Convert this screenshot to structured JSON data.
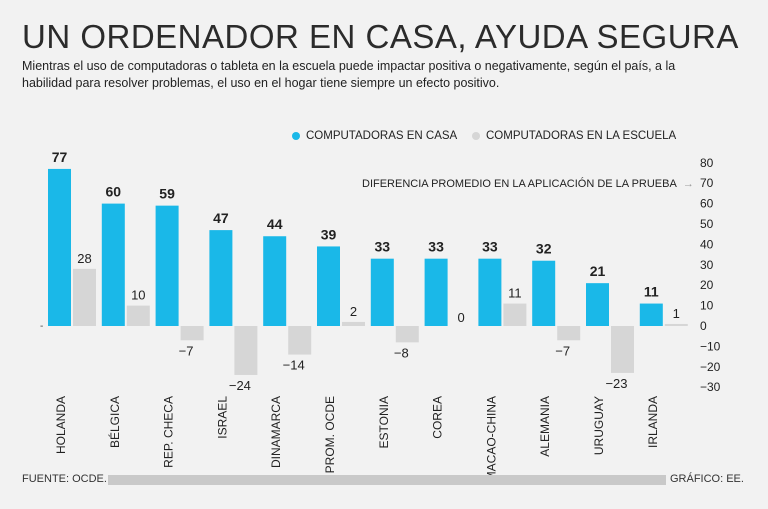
{
  "header": {
    "title": "UN ORDENADOR EN CASA, AYUDA SEGURA",
    "subtitle": "Mientras el uso de computadoras o tableta en la escuela puede impactar positiva o negativamente, según el país, a la habilidad para resolver problemas, el uso en el hogar tiene siempre un efecto positivo."
  },
  "legend": {
    "home": "COMPUTADORAS EN CASA",
    "school": "COMPUTADORAS EN LA ESCUELA"
  },
  "axis_note": {
    "text": "DIFERENCIA PROMEDIO EN LA APLICACIÓN DE LA PRUEBA",
    "arrow": "→"
  },
  "footer": {
    "source": "FUENTE: OCDE.",
    "credit": "GRÁFICO: EE."
  },
  "colors": {
    "home": "#1ab8e8",
    "school": "#d6d6d6",
    "background": "#f2f2f2"
  },
  "chart_data": {
    "type": "bar",
    "title": "UN ORDENADOR EN CASA, AYUDA SEGURA",
    "xlabel": "",
    "ylabel": "DIFERENCIA PROMEDIO EN LA APLICACIÓN DE LA PRUEBA",
    "ylim": [
      -30,
      80
    ],
    "yticks": [
      80,
      70,
      60,
      50,
      40,
      30,
      20,
      10,
      0,
      -10,
      -20,
      -30
    ],
    "yaxis_side": "right",
    "categories": [
      "HOLANDA",
      "BÉLGICA",
      "REP. CHECA",
      "ISRAEL",
      "DINAMARCA",
      "PROM. OCDE",
      "ESTONIA",
      "COREA",
      "MACAO-CHINA",
      "ALEMANIA",
      "URUGUAY",
      "IRLANDA"
    ],
    "series": [
      {
        "name": "COMPUTADORAS EN CASA",
        "values": [
          77,
          60,
          59,
          47,
          44,
          39,
          33,
          33,
          33,
          32,
          21,
          11
        ],
        "labels": [
          "77",
          "60",
          "59",
          "47",
          "44",
          "39",
          "33",
          "33",
          "33",
          "32",
          "21",
          "11"
        ]
      },
      {
        "name": "COMPUTADORAS EN LA ESCUELA",
        "values": [
          28,
          10,
          -7,
          -24,
          -14,
          2,
          -8,
          0,
          11,
          -7,
          -23,
          1
        ],
        "labels": [
          "28",
          "10",
          "−7",
          "−24",
          "−14",
          "2",
          "−8",
          "0",
          "11",
          "−7",
          "−23",
          "1"
        ]
      }
    ]
  }
}
